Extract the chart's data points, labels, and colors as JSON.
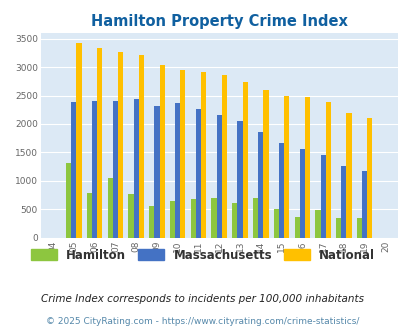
{
  "title": "Hamilton Property Crime Index",
  "years": [
    "04",
    "05",
    "06",
    "07",
    "08",
    "09",
    "10",
    "11",
    "12",
    "13",
    "14",
    "15",
    "16",
    "17",
    "18",
    "19",
    "20"
  ],
  "hamilton": [
    0,
    1320,
    790,
    1040,
    760,
    560,
    650,
    680,
    700,
    610,
    700,
    510,
    360,
    490,
    340,
    340,
    0
  ],
  "massachusetts": [
    0,
    2380,
    2410,
    2400,
    2440,
    2310,
    2360,
    2260,
    2160,
    2050,
    1850,
    1670,
    1560,
    1450,
    1260,
    1180,
    0
  ],
  "national": [
    0,
    3420,
    3340,
    3260,
    3210,
    3040,
    2950,
    2910,
    2860,
    2730,
    2590,
    2500,
    2470,
    2380,
    2200,
    2110,
    0
  ],
  "hamilton_color": "#8dc63f",
  "massachusetts_color": "#4472c4",
  "national_color": "#ffc000",
  "bg_color": "#dce9f5",
  "title_color": "#1060a0",
  "ylim_max": 3600,
  "yticks": [
    0,
    500,
    1000,
    1500,
    2000,
    2500,
    3000,
    3500
  ],
  "subtitle": "Crime Index corresponds to incidents per 100,000 inhabitants",
  "footer": "© 2025 CityRating.com - https://www.cityrating.com/crime-statistics/",
  "legend_labels": [
    "Hamilton",
    "Massachusetts",
    "National"
  ],
  "bar_width": 0.25
}
